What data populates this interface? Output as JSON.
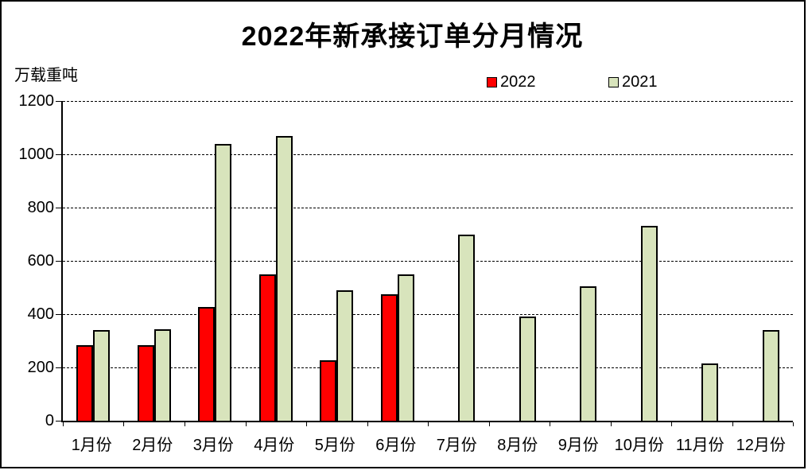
{
  "title": "2022年新承接订单分月情况",
  "y_axis_label": "万载重吨",
  "legend": [
    {
      "label": "2022",
      "color": "#ff0000"
    },
    {
      "label": "2021",
      "color": "#d8e4bc"
    }
  ],
  "chart_data": {
    "type": "bar",
    "title": "2022年新承接订单分月情况",
    "ylabel": "万载重吨",
    "categories": [
      "1月份",
      "2月份",
      "3月份",
      "4月份",
      "5月份",
      "6月份",
      "7月份",
      "8月份",
      "9月份",
      "10月份",
      "11月份",
      "12月份"
    ],
    "series": [
      {
        "name": "2022",
        "color": "#ff0000",
        "values": [
          283,
          284,
          428,
          548,
          227,
          476,
          null,
          null,
          null,
          null,
          null,
          null
        ]
      },
      {
        "name": "2021",
        "color": "#d8e4bc",
        "values": [
          340,
          343,
          1038,
          1068,
          489,
          550,
          699,
          391,
          504,
          732,
          215,
          341
        ]
      }
    ],
    "ylim": [
      0,
      1200
    ],
    "ytick_interval": 200,
    "yticks": [
      0,
      200,
      400,
      600,
      800,
      1000,
      1200
    ],
    "grid": "horizontal-dashed",
    "legend_position": "top"
  }
}
